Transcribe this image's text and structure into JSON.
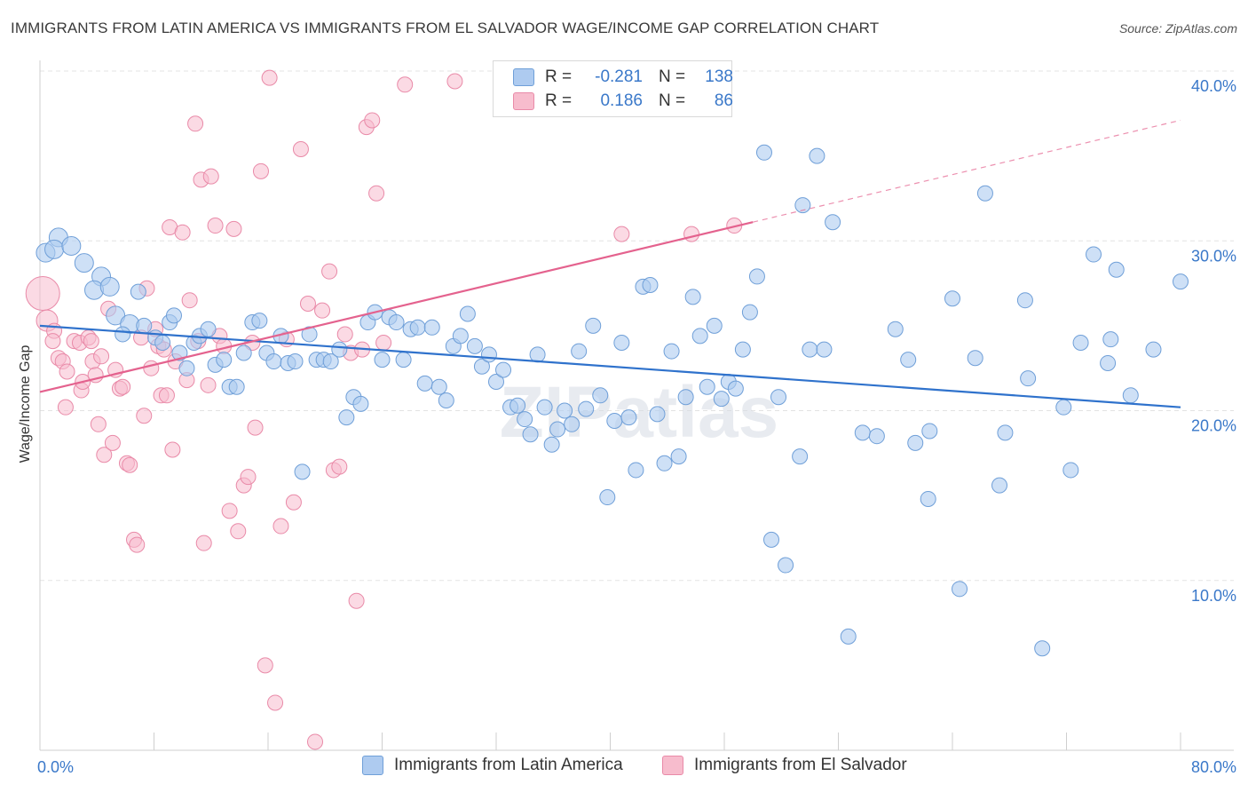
{
  "header": {
    "title": "IMMIGRANTS FROM LATIN AMERICA VS IMMIGRANTS FROM EL SALVADOR WAGE/INCOME GAP CORRELATION CHART",
    "source": "Source: ZipAtlas.com"
  },
  "legend": {
    "series1": {
      "r_label": "R =",
      "r_value": "-0.281",
      "n_label": "N =",
      "n_value": "138"
    },
    "series2": {
      "r_label": "R =",
      "r_value": "0.186",
      "n_label": "N =",
      "n_value": "86"
    }
  },
  "colors": {
    "blue_fill": "#aecbf0",
    "blue_stroke": "#6f9fd8",
    "blue_line": "#2f72cc",
    "pink_fill": "#f7bccd",
    "pink_stroke": "#e98aa8",
    "pink_line": "#e4628e",
    "axis_label": "#3a78c9",
    "grid": "#e3e3e3"
  },
  "chart_data": {
    "type": "scatter",
    "title": "IMMIGRANTS FROM LATIN AMERICA VS IMMIGRANTS FROM EL SALVADOR WAGE/INCOME GAP CORRELATION CHART",
    "xlabel": "",
    "ylabel": "Wage/Income Gap",
    "xlim": [
      0,
      80
    ],
    "ylim": [
      0,
      40
    ],
    "x_tick_labels": [
      "0.0%",
      "80.0%"
    ],
    "y_ticks": [
      10,
      20,
      30,
      40
    ],
    "y_tick_labels": [
      "10.0%",
      "20.0%",
      "30.0%",
      "40.0%"
    ],
    "watermark": "ZIPatlas",
    "series": [
      {
        "name": "Immigrants from Latin America",
        "color": "blue",
        "r": -0.281,
        "n": 138,
        "trend": {
          "x0": 0,
          "y0": 25.0,
          "x1": 80,
          "y1": 20.2
        },
        "points": [
          [
            0.4,
            29.3
          ],
          [
            1.3,
            30.2
          ],
          [
            1.0,
            29.5
          ],
          [
            2.2,
            29.7
          ],
          [
            3.1,
            28.7
          ],
          [
            4.3,
            27.9
          ],
          [
            3.8,
            27.1
          ],
          [
            4.9,
            27.3
          ],
          [
            5.3,
            25.6
          ],
          [
            6.3,
            25.1
          ],
          [
            5.8,
            24.5
          ],
          [
            6.9,
            27.0
          ],
          [
            7.3,
            25.0
          ],
          [
            8.1,
            24.3
          ],
          [
            8.6,
            24.0
          ],
          [
            9.1,
            25.2
          ],
          [
            9.4,
            25.6
          ],
          [
            9.8,
            23.4
          ],
          [
            10.3,
            22.5
          ],
          [
            10.8,
            24.0
          ],
          [
            11.2,
            24.4
          ],
          [
            11.8,
            24.8
          ],
          [
            12.3,
            22.7
          ],
          [
            12.9,
            23.0
          ],
          [
            13.3,
            21.4
          ],
          [
            13.8,
            21.4
          ],
          [
            14.3,
            23.4
          ],
          [
            14.9,
            25.2
          ],
          [
            15.4,
            25.3
          ],
          [
            15.9,
            23.4
          ],
          [
            16.4,
            22.9
          ],
          [
            16.9,
            24.4
          ],
          [
            17.4,
            22.8
          ],
          [
            17.9,
            22.9
          ],
          [
            18.4,
            16.4
          ],
          [
            18.9,
            24.5
          ],
          [
            19.4,
            23.0
          ],
          [
            19.9,
            23.0
          ],
          [
            20.4,
            22.9
          ],
          [
            21.0,
            23.6
          ],
          [
            21.5,
            19.6
          ],
          [
            22.0,
            20.8
          ],
          [
            22.5,
            20.4
          ],
          [
            23.0,
            25.2
          ],
          [
            23.5,
            25.8
          ],
          [
            24.0,
            23.0
          ],
          [
            24.5,
            25.5
          ],
          [
            25.0,
            25.2
          ],
          [
            25.5,
            23.0
          ],
          [
            26.0,
            24.8
          ],
          [
            26.5,
            24.9
          ],
          [
            27.0,
            21.6
          ],
          [
            27.5,
            24.9
          ],
          [
            28.0,
            21.4
          ],
          [
            28.5,
            20.6
          ],
          [
            29.0,
            23.8
          ],
          [
            29.5,
            24.4
          ],
          [
            30.0,
            25.7
          ],
          [
            30.5,
            23.8
          ],
          [
            31.0,
            22.6
          ],
          [
            31.5,
            23.3
          ],
          [
            32.0,
            21.7
          ],
          [
            32.5,
            22.4
          ],
          [
            33.0,
            20.2
          ],
          [
            33.5,
            20.3
          ],
          [
            34.0,
            19.5
          ],
          [
            34.4,
            18.6
          ],
          [
            34.9,
            23.3
          ],
          [
            35.4,
            20.2
          ],
          [
            35.9,
            18.0
          ],
          [
            36.3,
            18.9
          ],
          [
            36.8,
            20.0
          ],
          [
            37.3,
            19.2
          ],
          [
            37.8,
            23.5
          ],
          [
            38.3,
            20.1
          ],
          [
            38.8,
            25.0
          ],
          [
            39.3,
            20.9
          ],
          [
            39.8,
            14.9
          ],
          [
            40.3,
            19.4
          ],
          [
            40.8,
            24.0
          ],
          [
            41.3,
            19.6
          ],
          [
            41.8,
            16.5
          ],
          [
            42.3,
            27.3
          ],
          [
            42.8,
            27.4
          ],
          [
            43.3,
            19.8
          ],
          [
            43.8,
            16.9
          ],
          [
            44.3,
            23.5
          ],
          [
            44.8,
            17.3
          ],
          [
            45.3,
            20.8
          ],
          [
            45.8,
            26.7
          ],
          [
            46.3,
            24.4
          ],
          [
            46.8,
            21.4
          ],
          [
            47.3,
            25.0
          ],
          [
            47.8,
            20.7
          ],
          [
            48.3,
            21.7
          ],
          [
            48.8,
            21.3
          ],
          [
            49.3,
            23.6
          ],
          [
            49.8,
            25.8
          ],
          [
            50.3,
            27.9
          ],
          [
            50.8,
            35.2
          ],
          [
            51.3,
            12.4
          ],
          [
            51.8,
            20.8
          ],
          [
            52.3,
            10.9
          ],
          [
            53.3,
            17.3
          ],
          [
            53.5,
            32.1
          ],
          [
            54.0,
            23.6
          ],
          [
            54.5,
            35.0
          ],
          [
            55.0,
            23.6
          ],
          [
            55.6,
            31.1
          ],
          [
            56.7,
            6.7
          ],
          [
            57.7,
            18.7
          ],
          [
            58.7,
            18.5
          ],
          [
            60.0,
            24.8
          ],
          [
            60.9,
            23.0
          ],
          [
            61.4,
            18.1
          ],
          [
            62.3,
            14.8
          ],
          [
            62.4,
            18.8
          ],
          [
            64.0,
            26.6
          ],
          [
            64.5,
            9.5
          ],
          [
            65.6,
            23.1
          ],
          [
            66.3,
            32.8
          ],
          [
            67.3,
            15.6
          ],
          [
            67.7,
            18.7
          ],
          [
            69.1,
            26.5
          ],
          [
            69.3,
            21.9
          ],
          [
            70.3,
            6.0
          ],
          [
            71.8,
            20.2
          ],
          [
            72.3,
            16.5
          ],
          [
            73.0,
            24.0
          ],
          [
            73.9,
            29.2
          ],
          [
            74.9,
            22.8
          ],
          [
            75.1,
            24.2
          ],
          [
            75.5,
            28.3
          ],
          [
            76.5,
            20.9
          ],
          [
            78.1,
            23.6
          ],
          [
            80.0,
            27.6
          ]
        ]
      },
      {
        "name": "Immigrants from El Salvador",
        "color": "pink",
        "r": 0.186,
        "n": 86,
        "trend": {
          "x0": 0,
          "y0": 21.1,
          "x1": 80,
          "y1": 37.1,
          "solid_until_x": 50
        },
        "points": [
          [
            0.2,
            26.9
          ],
          [
            0.5,
            25.3
          ],
          [
            1.0,
            24.7
          ],
          [
            0.9,
            24.1
          ],
          [
            1.3,
            23.1
          ],
          [
            1.6,
            22.9
          ],
          [
            1.8,
            20.2
          ],
          [
            1.9,
            22.3
          ],
          [
            2.4,
            24.1
          ],
          [
            2.8,
            24.0
          ],
          [
            2.9,
            21.2
          ],
          [
            3.0,
            21.7
          ],
          [
            3.4,
            24.3
          ],
          [
            3.6,
            24.1
          ],
          [
            3.7,
            22.9
          ],
          [
            3.9,
            22.1
          ],
          [
            4.1,
            19.2
          ],
          [
            4.3,
            23.2
          ],
          [
            4.5,
            17.4
          ],
          [
            4.8,
            26.0
          ],
          [
            5.1,
            18.1
          ],
          [
            5.3,
            22.4
          ],
          [
            5.6,
            21.3
          ],
          [
            5.8,
            21.4
          ],
          [
            6.1,
            16.9
          ],
          [
            6.3,
            16.8
          ],
          [
            6.6,
            12.4
          ],
          [
            6.8,
            12.1
          ],
          [
            7.1,
            24.3
          ],
          [
            7.3,
            19.7
          ],
          [
            7.5,
            27.2
          ],
          [
            7.8,
            22.5
          ],
          [
            8.1,
            24.8
          ],
          [
            8.3,
            23.8
          ],
          [
            8.5,
            20.9
          ],
          [
            8.7,
            23.6
          ],
          [
            8.9,
            20.9
          ],
          [
            9.1,
            30.8
          ],
          [
            9.3,
            17.7
          ],
          [
            9.5,
            22.9
          ],
          [
            10.0,
            30.5
          ],
          [
            10.3,
            21.8
          ],
          [
            10.5,
            26.5
          ],
          [
            10.9,
            36.9
          ],
          [
            11.1,
            24.1
          ],
          [
            11.3,
            33.6
          ],
          [
            11.5,
            12.2
          ],
          [
            11.8,
            21.5
          ],
          [
            12.0,
            33.8
          ],
          [
            12.3,
            30.9
          ],
          [
            12.6,
            24.4
          ],
          [
            12.9,
            23.8
          ],
          [
            13.3,
            14.1
          ],
          [
            13.6,
            30.7
          ],
          [
            13.9,
            12.9
          ],
          [
            14.3,
            15.6
          ],
          [
            14.6,
            16.1
          ],
          [
            14.9,
            24.0
          ],
          [
            15.1,
            19.0
          ],
          [
            15.5,
            34.1
          ],
          [
            15.8,
            5.0
          ],
          [
            16.1,
            39.6
          ],
          [
            16.5,
            2.8
          ],
          [
            16.9,
            13.2
          ],
          [
            17.3,
            24.2
          ],
          [
            17.8,
            14.6
          ],
          [
            18.3,
            35.4
          ],
          [
            18.8,
            26.3
          ],
          [
            19.3,
            0.5
          ],
          [
            19.8,
            25.9
          ],
          [
            20.3,
            28.2
          ],
          [
            20.6,
            16.5
          ],
          [
            21.0,
            16.7
          ],
          [
            21.4,
            24.5
          ],
          [
            21.8,
            23.4
          ],
          [
            22.2,
            8.8
          ],
          [
            22.6,
            23.6
          ],
          [
            22.9,
            36.7
          ],
          [
            23.3,
            37.1
          ],
          [
            23.6,
            32.8
          ],
          [
            24.1,
            24.0
          ],
          [
            25.6,
            39.2
          ],
          [
            29.1,
            39.4
          ],
          [
            40.8,
            30.4
          ],
          [
            45.7,
            30.4
          ],
          [
            48.7,
            30.9
          ]
        ]
      }
    ]
  },
  "bottom_legend": {
    "item1": "Immigrants from Latin America",
    "item2": "Immigrants from El Salvador"
  }
}
